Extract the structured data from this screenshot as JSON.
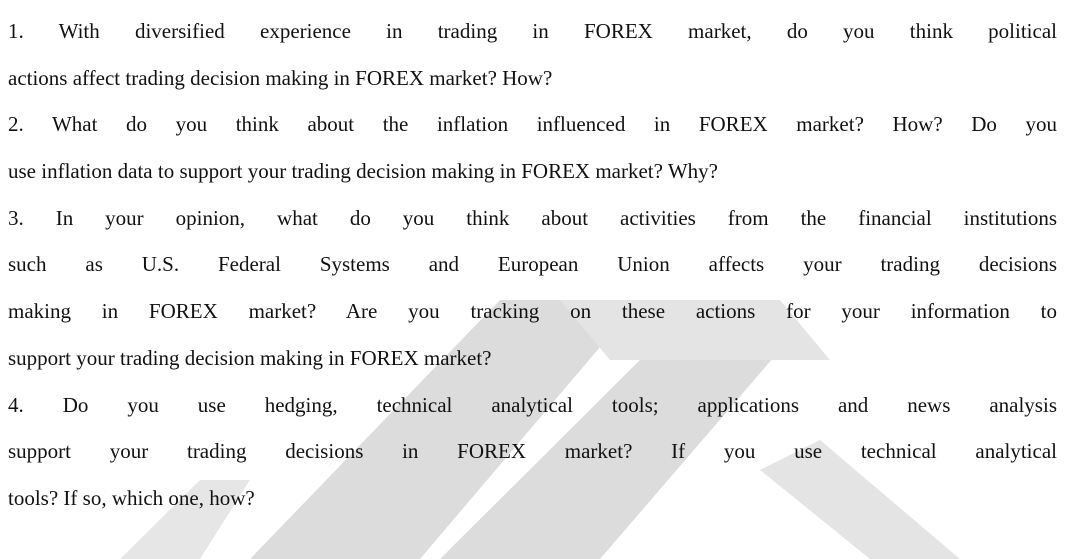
{
  "items": [
    {
      "lines": [
        "1. With diversified experience in trading in FOREX market, do you think political",
        "actions affect trading decision making in FOREX market? How?"
      ]
    },
    {
      "lines": [
        "2. What do you think about the inflation influenced in FOREX market? How? Do you",
        "use inflation data to support your trading decision making in FOREX market? Why?"
      ]
    },
    {
      "lines": [
        "3. In your opinion, what do you think about activities from the financial institutions",
        "such as U.S. Federal Systems and European Union affects your trading decisions",
        "making in FOREX market? Are you tracking on these actions for your information to",
        "support your trading decision making in FOREX market?"
      ]
    },
    {
      "lines": [
        "4. Do you use hedging, technical analytical tools; applications and news analysis",
        "support your trading decisions in FOREX market? If you use technical analytical",
        "tools? If so, which one, how?"
      ]
    }
  ]
}
